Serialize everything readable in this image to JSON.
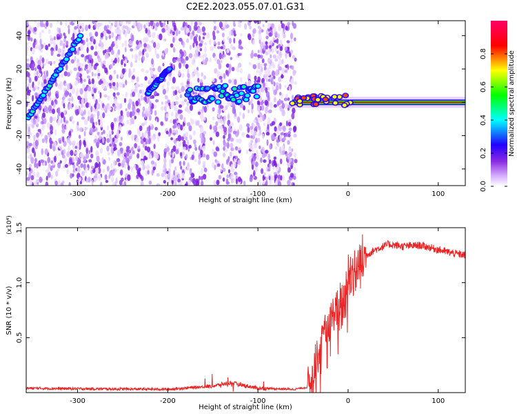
{
  "title": "C2E2.2023.055.07.01.G31",
  "chart_data": [
    {
      "type": "heatmap",
      "xlabel": "Height of straight line (km)",
      "ylabel": "Frequency (Hz)",
      "xlim": [
        -357,
        130
      ],
      "ylim": [
        -50,
        49
      ],
      "x_ticks": [
        -300,
        -200,
        -100,
        0,
        100
      ],
      "y_ticks": [
        -40,
        -20,
        0,
        20,
        40
      ],
      "grid": false,
      "colorbar": {
        "label": "Normalized spectral amplitude",
        "range": [
          0,
          1
        ],
        "ticks": [
          "0.0",
          "0.2",
          "0.4",
          "0.6",
          "0.8"
        ],
        "colors": [
          "#ffffff",
          "#d9b3ff",
          "#8a2be2",
          "#2200ff",
          "#00ffff",
          "#00ff00",
          "#ffff00",
          "#ff0000",
          "#ff0066"
        ]
      },
      "features": [
        {
          "name": "diagonal streak",
          "x": [
            -355,
            -297
          ],
          "y": [
            -10,
            40
          ]
        },
        {
          "name": "short streak",
          "x": [
            -222,
            -198
          ],
          "y": [
            6,
            20
          ]
        },
        {
          "name": "central band",
          "x": [
            -178,
            -100
          ],
          "y": [
            0,
            10
          ]
        },
        {
          "name": "narrow tone",
          "x": [
            -62,
            130
          ],
          "y": [
            0,
            0
          ]
        }
      ]
    },
    {
      "type": "line",
      "xlabel": "Height of straight line (km)",
      "ylabel": "SNR (10 * v/v)",
      "y_multiplier": "(x10⁴)",
      "xlim": [
        -357,
        130
      ],
      "ylim": [
        0,
        15000
      ],
      "x_ticks": [
        -300,
        -200,
        -100,
        0,
        100
      ],
      "y_ticks": [
        5000,
        10000,
        15000
      ],
      "y_tick_labels": [
        "0.5",
        "1.0",
        "1.5"
      ],
      "color": "#ee2222",
      "series": [
        {
          "x": [
            -357,
            -300,
            -200,
            -150,
            -130,
            -100,
            -60,
            -45,
            -35,
            -25,
            -15,
            -5,
            0,
            10,
            20,
            30,
            45,
            60,
            80,
            100,
            115,
            130
          ],
          "y": [
            400,
            350,
            300,
            600,
            900,
            400,
            300,
            500,
            3000,
            5500,
            7500,
            8000,
            10500,
            11500,
            12500,
            13000,
            13500,
            13300,
            13400,
            13000,
            12700,
            12500
          ]
        }
      ]
    }
  ]
}
